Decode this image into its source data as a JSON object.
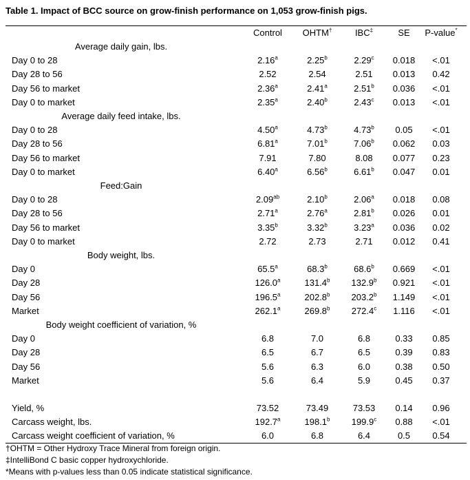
{
  "title": "Table 1. Impact of BCC source on grow-finish performance on 1,053 grow-finish pigs.",
  "headers": [
    {
      "text": "Control",
      "sup": ""
    },
    {
      "text": "OHTM",
      "sup": "†"
    },
    {
      "text": "IBC",
      "sup": "‡"
    },
    {
      "text": "SE",
      "sup": ""
    },
    {
      "text": "P-value",
      "sup": "*"
    }
  ],
  "rows": [
    {
      "type": "section",
      "label": "Average daily gain, lbs."
    },
    {
      "type": "data",
      "label": "Day 0 to 28",
      "cells": [
        [
          "2.16",
          "a"
        ],
        [
          "2.25",
          "b"
        ],
        [
          "2.29",
          "c"
        ],
        [
          "0.018",
          ""
        ],
        [
          "<.01",
          ""
        ]
      ]
    },
    {
      "type": "data",
      "label": "Day 28 to 56",
      "cells": [
        [
          "2.52",
          ""
        ],
        [
          "2.54",
          ""
        ],
        [
          "2.51",
          ""
        ],
        [
          "0.013",
          ""
        ],
        [
          "0.42",
          ""
        ]
      ]
    },
    {
      "type": "data",
      "label": "Day 56 to market",
      "cells": [
        [
          "2.36",
          "a"
        ],
        [
          "2.41",
          "a"
        ],
        [
          "2.51",
          "b"
        ],
        [
          "0.036",
          ""
        ],
        [
          "<.01",
          ""
        ]
      ]
    },
    {
      "type": "data",
      "label": "Day 0 to market",
      "cells": [
        [
          "2.35",
          "a"
        ],
        [
          "2.40",
          "b"
        ],
        [
          "2.43",
          "c"
        ],
        [
          "0.013",
          ""
        ],
        [
          "<.01",
          ""
        ]
      ]
    },
    {
      "type": "section",
      "label": "Average daily feed intake, lbs."
    },
    {
      "type": "data",
      "label": "Day 0 to 28",
      "cells": [
        [
          "4.50",
          "a"
        ],
        [
          "4.73",
          "b"
        ],
        [
          "4.73",
          "b"
        ],
        [
          "0.05",
          ""
        ],
        [
          "<.01",
          ""
        ]
      ]
    },
    {
      "type": "data",
      "label": "Day 28 to 56",
      "cells": [
        [
          "6.81",
          "a"
        ],
        [
          "7.01",
          "b"
        ],
        [
          "7.06",
          "b"
        ],
        [
          "0.062",
          ""
        ],
        [
          "0.03",
          ""
        ]
      ]
    },
    {
      "type": "data",
      "label": "Day 56 to market",
      "cells": [
        [
          "7.91",
          ""
        ],
        [
          "7.80",
          ""
        ],
        [
          "8.08",
          ""
        ],
        [
          "0.077",
          ""
        ],
        [
          "0.23",
          ""
        ]
      ]
    },
    {
      "type": "data",
      "label": "Day 0 to market",
      "cells": [
        [
          "6.40",
          "a"
        ],
        [
          "6.56",
          "b"
        ],
        [
          "6.61",
          "b"
        ],
        [
          "0.047",
          ""
        ],
        [
          "0.01",
          ""
        ]
      ]
    },
    {
      "type": "section",
      "label": "Feed:Gain"
    },
    {
      "type": "data",
      "label": "Day 0 to 28",
      "cells": [
        [
          "2.09",
          "ab"
        ],
        [
          "2.10",
          "b"
        ],
        [
          "2.06",
          "a"
        ],
        [
          "0.018",
          ""
        ],
        [
          "0.08",
          ""
        ]
      ]
    },
    {
      "type": "data",
      "label": "Day 28 to 56",
      "cells": [
        [
          "2.71",
          "a"
        ],
        [
          "2.76",
          "a"
        ],
        [
          "2.81",
          "b"
        ],
        [
          "0.026",
          ""
        ],
        [
          "0.01",
          ""
        ]
      ]
    },
    {
      "type": "data",
      "label": "Day 56 to market",
      "cells": [
        [
          "3.35",
          "b"
        ],
        [
          "3.32",
          "b"
        ],
        [
          "3.23",
          "a"
        ],
        [
          "0.036",
          ""
        ],
        [
          "0.02",
          ""
        ]
      ]
    },
    {
      "type": "data",
      "label": "Day 0 to market",
      "cells": [
        [
          "2.72",
          ""
        ],
        [
          "2.73",
          ""
        ],
        [
          "2.71",
          ""
        ],
        [
          "0.012",
          ""
        ],
        [
          "0.41",
          ""
        ]
      ]
    },
    {
      "type": "section",
      "label": "Body weight, lbs."
    },
    {
      "type": "data",
      "label": "Day 0",
      "cells": [
        [
          "65.5",
          "a"
        ],
        [
          "68.3",
          "b"
        ],
        [
          "68.6",
          "b"
        ],
        [
          "0.669",
          ""
        ],
        [
          "<.01",
          ""
        ]
      ]
    },
    {
      "type": "data",
      "label": "Day 28",
      "cells": [
        [
          "126.0",
          "a"
        ],
        [
          "131.4",
          "b"
        ],
        [
          "132.9",
          "b"
        ],
        [
          "0.921",
          ""
        ],
        [
          "<.01",
          ""
        ]
      ]
    },
    {
      "type": "data",
      "label": "Day 56",
      "cells": [
        [
          "196.5",
          "a"
        ],
        [
          "202.8",
          "b"
        ],
        [
          "203.2",
          "b"
        ],
        [
          "1.149",
          ""
        ],
        [
          "<.01",
          ""
        ]
      ]
    },
    {
      "type": "data",
      "label": "Market",
      "cells": [
        [
          "262.1",
          "a"
        ],
        [
          "269.8",
          "b"
        ],
        [
          "272.4",
          "c"
        ],
        [
          "1.116",
          ""
        ],
        [
          "<.01",
          ""
        ]
      ]
    },
    {
      "type": "section",
      "label": "Body weight coefficient of variation, %"
    },
    {
      "type": "data",
      "label": "Day 0",
      "cells": [
        [
          "6.8",
          ""
        ],
        [
          "7.0",
          ""
        ],
        [
          "6.8",
          ""
        ],
        [
          "0.33",
          ""
        ],
        [
          "0.85",
          ""
        ]
      ]
    },
    {
      "type": "data",
      "label": "Day 28",
      "cells": [
        [
          "6.5",
          ""
        ],
        [
          "6.7",
          ""
        ],
        [
          "6.5",
          ""
        ],
        [
          "0.39",
          ""
        ],
        [
          "0.83",
          ""
        ]
      ]
    },
    {
      "type": "data",
      "label": "Day 56",
      "cells": [
        [
          "5.6",
          ""
        ],
        [
          "6.3",
          ""
        ],
        [
          "6.0",
          ""
        ],
        [
          "0.38",
          ""
        ],
        [
          "0.50",
          ""
        ]
      ]
    },
    {
      "type": "data",
      "label": "Market",
      "cells": [
        [
          "5.6",
          ""
        ],
        [
          "6.4",
          ""
        ],
        [
          "5.9",
          ""
        ],
        [
          "0.45",
          ""
        ],
        [
          "0.37",
          ""
        ]
      ]
    },
    {
      "type": "spacer"
    },
    {
      "type": "data",
      "label": "Yield, %",
      "cells": [
        [
          "73.52",
          ""
        ],
        [
          "73.49",
          ""
        ],
        [
          "73.53",
          ""
        ],
        [
          "0.14",
          ""
        ],
        [
          "0.96",
          ""
        ]
      ]
    },
    {
      "type": "data",
      "label": "Carcass weight, lbs.",
      "cells": [
        [
          "192.7",
          "a"
        ],
        [
          "198.1",
          "b"
        ],
        [
          "199.9",
          "c"
        ],
        [
          "0.88",
          ""
        ],
        [
          "<.01",
          ""
        ]
      ]
    },
    {
      "type": "data",
      "label": "Carcass weight coefficient of variation, %",
      "cells": [
        [
          "6.0",
          ""
        ],
        [
          "6.8",
          ""
        ],
        [
          "6.4",
          ""
        ],
        [
          "0.5",
          ""
        ],
        [
          "0.54",
          ""
        ]
      ]
    }
  ],
  "footnotes": [
    "†OHTM = Other Hydroxy Trace Mineral from foreign origin.",
    "‡IntelliBond C basic copper hydroxychloride.",
    "*Means with p-values less than 0.05 indicate statistical significance."
  ]
}
